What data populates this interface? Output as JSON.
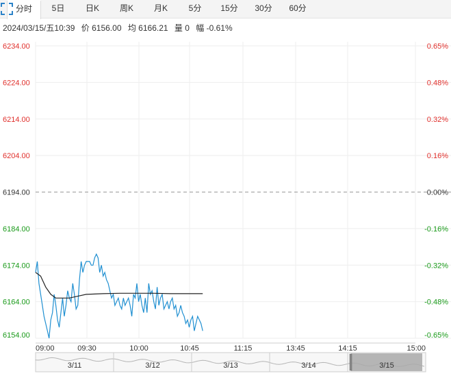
{
  "tabs": [
    {
      "label": "分时",
      "active": true
    },
    {
      "label": "5日",
      "active": false
    },
    {
      "label": "日K",
      "active": false
    },
    {
      "label": "周K",
      "active": false
    },
    {
      "label": "月K",
      "active": false
    },
    {
      "label": "5分",
      "active": false
    },
    {
      "label": "15分",
      "active": false
    },
    {
      "label": "30分",
      "active": false
    },
    {
      "label": "60分",
      "active": false
    }
  ],
  "fullscreen_icon": "fullscreen-icon",
  "info": {
    "datetime": "2024/03/15/五10:39",
    "price": "价 6156.00",
    "avg": "均 6166.21",
    "volume": "量 0",
    "change": "幅 -0.61%"
  },
  "colors": {
    "up": "#e0302c",
    "down": "#1a9a1a",
    "price_line": "#1f8fd1",
    "avg_line": "#222222",
    "grid": "#eeeeee",
    "baseline": "#999999"
  },
  "chart_data": {
    "type": "line",
    "prev_close": 6194.0,
    "ylim": [
      6154.0,
      6234.0
    ],
    "y_ticks_left": [
      "6234.00",
      "6224.00",
      "6214.00",
      "6204.00",
      "6194.00",
      "6184.00",
      "6174.00",
      "6164.00",
      "6154.00"
    ],
    "y_ticks_right": [
      "0.65%",
      "0.48%",
      "0.32%",
      "0.16%",
      "0.00%",
      "-0.16%",
      "-0.32%",
      "-0.48%",
      "-0.65%"
    ],
    "x_ticks": [
      "09:00",
      "09:30",
      "10:00",
      "10:45",
      "11:15",
      "13:45",
      "14:15",
      "15:00"
    ],
    "total_minutes": 225,
    "series": [
      {
        "key": "price",
        "x": [
          0,
          1,
          2,
          3,
          4,
          5,
          6,
          7,
          8,
          9,
          10,
          11,
          12,
          13,
          14,
          15,
          16,
          17,
          18,
          19,
          20,
          21,
          22,
          23,
          24,
          25,
          26,
          27,
          28,
          29,
          30,
          31,
          32,
          33,
          34,
          35,
          36,
          37,
          38,
          39,
          40,
          41,
          42,
          43,
          44,
          45,
          46,
          47,
          48,
          49,
          50,
          51,
          52,
          53,
          54,
          55,
          56,
          57,
          58,
          59,
          60,
          61,
          62,
          63,
          64,
          65,
          66,
          67,
          68,
          69,
          70,
          71,
          72,
          73,
          74,
          75,
          76,
          77,
          78,
          79,
          80,
          81,
          82,
          83,
          84,
          85,
          86,
          87,
          88,
          89,
          90,
          91,
          92,
          93,
          94,
          95,
          96,
          97,
          98,
          99
        ],
        "y": [
          6172,
          6175,
          6169,
          6166,
          6163,
          6160,
          6158,
          6156,
          6154,
          6159,
          6161,
          6166,
          6163,
          6159,
          6157,
          6161,
          6165,
          6160,
          6163,
          6167,
          6165,
          6164,
          6169,
          6166,
          6162,
          6163,
          6170,
          6175,
          6172,
          6174,
          6175,
          6175,
          6175,
          6174,
          6174,
          6176,
          6177,
          6176,
          6172,
          6174,
          6171,
          6172,
          6170,
          6169,
          6167,
          6165,
          6166,
          6163,
          6164,
          6165,
          6163,
          6162,
          6165,
          6163,
          6164,
          6165,
          6163,
          6160,
          6166,
          6165,
          6169,
          6164,
          6166,
          6163,
          6161,
          6165,
          6161,
          6169,
          6166,
          6167,
          6164,
          6162,
          6168,
          6163,
          6165,
          6166,
          6162,
          6163,
          6164,
          6162,
          6164,
          6165,
          6162,
          6163,
          6160,
          6161,
          6163,
          6161,
          6160,
          6158,
          6159,
          6157,
          6159,
          6160,
          6156,
          6158,
          6160,
          6159,
          6158,
          6156
        ]
      },
      {
        "key": "avg",
        "x": [
          0,
          3,
          6,
          9,
          12,
          15,
          20,
          25,
          30,
          40,
          50,
          60,
          70,
          80,
          90,
          99
        ],
        "y": [
          6172,
          6171,
          6168,
          6166,
          6165,
          6165,
          6165,
          6165.5,
          6166,
          6166.2,
          6166.3,
          6166.3,
          6166.3,
          6166.2,
          6166.2,
          6166.2
        ]
      }
    ]
  },
  "navigator": {
    "days": [
      "3/11",
      "3/12",
      "3/13",
      "3/14",
      "3/15"
    ],
    "selected_index": 4
  }
}
